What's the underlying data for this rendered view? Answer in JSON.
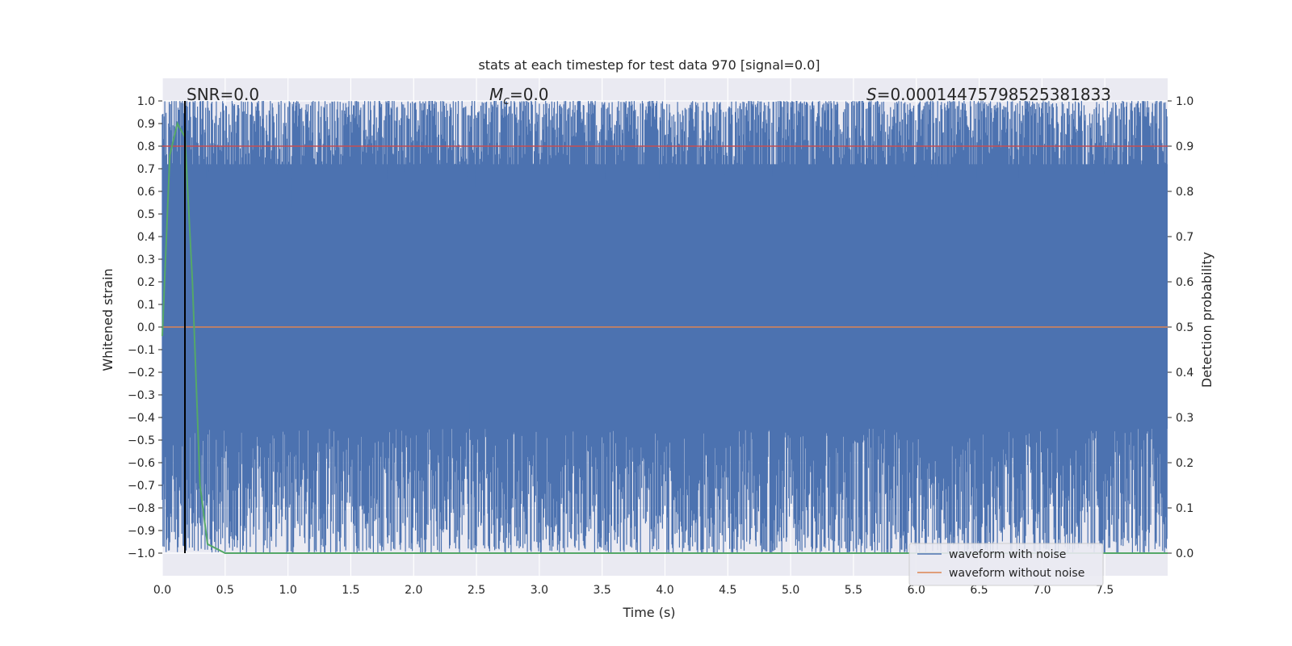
{
  "chart_data": {
    "type": "line",
    "title": "stats at each timestep for test data 970 [signal=0.0]",
    "xlabel": "Time (s)",
    "ylabel_left": "Whitened strain",
    "ylabel_right": "Detection probability",
    "xlim": [
      0.0,
      8.0
    ],
    "ylim_left": [
      -1.1,
      1.1
    ],
    "ylim_right": [
      -0.05,
      1.05
    ],
    "x_ticks": [
      "0.0",
      "0.5",
      "1.0",
      "1.5",
      "2.0",
      "2.5",
      "3.0",
      "3.5",
      "4.0",
      "4.5",
      "5.0",
      "5.5",
      "6.0",
      "6.5",
      "7.0",
      "7.5"
    ],
    "y_ticks_left": [
      "1.0",
      "0.9",
      "0.8",
      "0.7",
      "0.6",
      "0.5",
      "0.4",
      "0.3",
      "0.2",
      "0.1",
      "0.0",
      "−0.1",
      "−0.2",
      "−0.3",
      "−0.4",
      "−0.5",
      "−0.6",
      "−0.7",
      "−0.8",
      "−0.9",
      "−1.0"
    ],
    "y_ticks_right": [
      "1.0",
      "0.9",
      "0.8",
      "0.7",
      "0.6",
      "0.5",
      "0.4",
      "0.3",
      "0.2",
      "0.1",
      "0.0"
    ],
    "grid": true,
    "annotations": {
      "snr": "SNR=0.0",
      "mc_symbol": "M",
      "mc_sub": "c",
      "mc_value": "=0.0",
      "s_symbol": "S",
      "s_value": "=0.00014475798525381833"
    },
    "vertical_marker_x": 0.18,
    "threshold_line_right": 0.9,
    "series": [
      {
        "name": "waveform with noise",
        "color": "#4c72b0",
        "amplitude_range": [
          -1.0,
          1.0
        ]
      },
      {
        "name": "waveform without noise",
        "color": "#dd8452",
        "values_constant": 0.0
      },
      {
        "color": "#55a868",
        "x": [
          0.0,
          0.06,
          0.12,
          0.18,
          0.24,
          0.3,
          0.36,
          0.5,
          8.0
        ],
        "y": [
          0.48,
          0.88,
          0.95,
          0.92,
          0.6,
          0.15,
          0.02,
          0.0,
          0.0
        ]
      }
    ],
    "legend": {
      "placement": "lower-right"
    }
  }
}
